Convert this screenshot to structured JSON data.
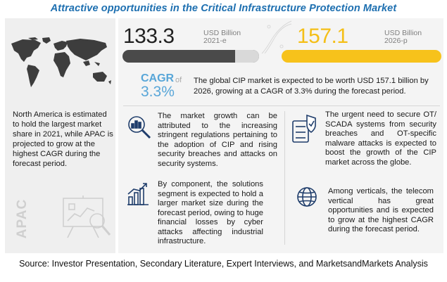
{
  "title": "Attractive opportunities in the Critical Infrastructure Protection Market",
  "left": {
    "text": "North America is estimated to hold the largest market share in 2021, while APAC is projected to grow at the highest CAGR during the forecast period.",
    "apac_label": "APAC"
  },
  "market": {
    "value_2021": "133.3",
    "unit_2021": "USD Billion",
    "year_2021": "2021-e",
    "value_2026": "157.1",
    "unit_2026": "USD Billion",
    "year_2026": "2026-p",
    "accent_color": "#f7c21b",
    "dark_color": "#4a4a4a"
  },
  "cagr": {
    "label": "CAGR",
    "of": "of",
    "value": "3.3%",
    "text": "The global CIP market is expected to be worth USD 157.1 billion by 2026, growing at a CAGR of 3.3% during the forecast period."
  },
  "insights": {
    "i1": "The market growth can be attributed to the increasing stringent regulations pertaining to the adoption of CIP and rising security breaches and attacks on security systems.",
    "i2": "By component, the solutions segment is expected to hold a larger market size during the forecast period, owing to huge financial losses by cyber attacks affecting industrial infrastructure.",
    "i3": "The urgent need to secure OT/ SCADA systems from security breaches and OT-specific malware attacks is expected to boost the growth of the CIP market across the globe.",
    "i4": "Among verticals, the telecom vertical has great opportunities and is expected to grow at the highest CAGR during the forecast period."
  },
  "icons": [
    "world-map-icon",
    "analytics-board-icon",
    "magnifier-chart-icon",
    "bar-chart-icon",
    "security-server-icon",
    "globe-icon"
  ],
  "source": "Source: Investor Presentation, Secondary Literature, Expert Interviews, and MarketsandMarkets Analysis"
}
